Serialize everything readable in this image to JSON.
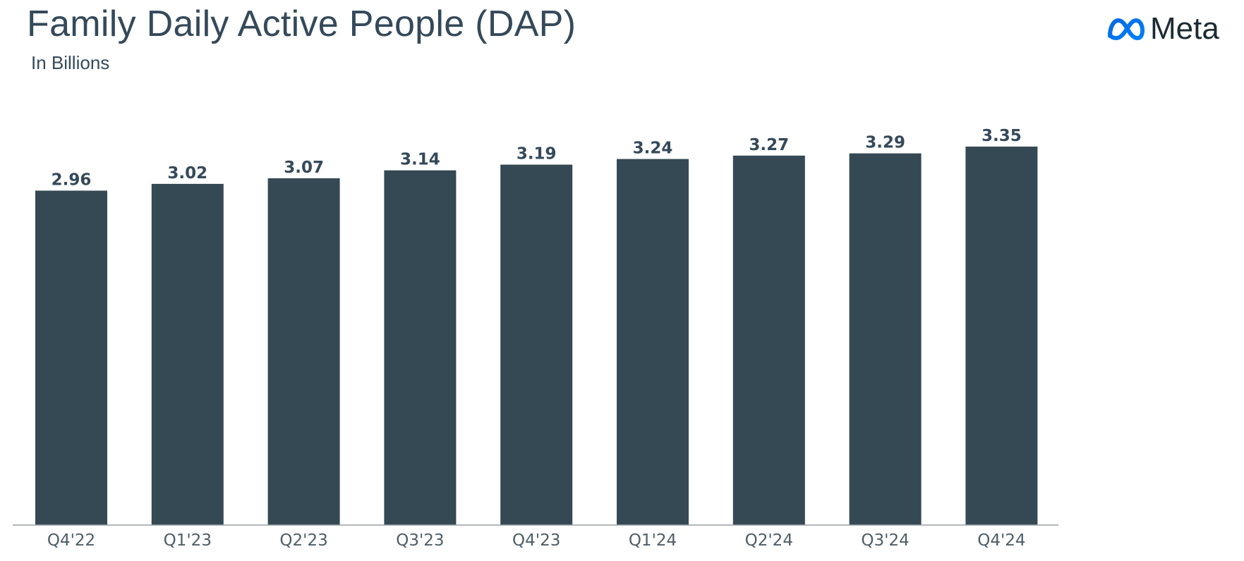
{
  "header": {
    "title": "Family Daily Active People (DAP)",
    "subtitle": "In Billions"
  },
  "logo": {
    "wordmark": "Meta",
    "icon": "meta-infinity-logo",
    "colors": {
      "gradient_start": "#0668E1",
      "gradient_end": "#0064E0"
    }
  },
  "colors": {
    "bar": "#354954",
    "text": "#34495a",
    "axis": "#9aa0a4"
  },
  "chart_data": {
    "type": "bar",
    "title": "Family Daily Active People (DAP)",
    "subtitle": "In Billions",
    "xlabel": "",
    "ylabel": "",
    "categories": [
      "Q4'22",
      "Q1'23",
      "Q2'23",
      "Q3'23",
      "Q4'23",
      "Q1'24",
      "Q2'24",
      "Q3'24",
      "Q4'24"
    ],
    "values": [
      2.96,
      3.02,
      3.07,
      3.14,
      3.19,
      3.24,
      3.27,
      3.29,
      3.35
    ],
    "value_labels": [
      "2.96",
      "3.02",
      "3.07",
      "3.14",
      "3.19",
      "3.24",
      "3.27",
      "3.29",
      "3.35"
    ],
    "ylim": [
      0,
      3.35
    ],
    "grid": false,
    "legend": "none",
    "data_labels": "above-bars"
  }
}
